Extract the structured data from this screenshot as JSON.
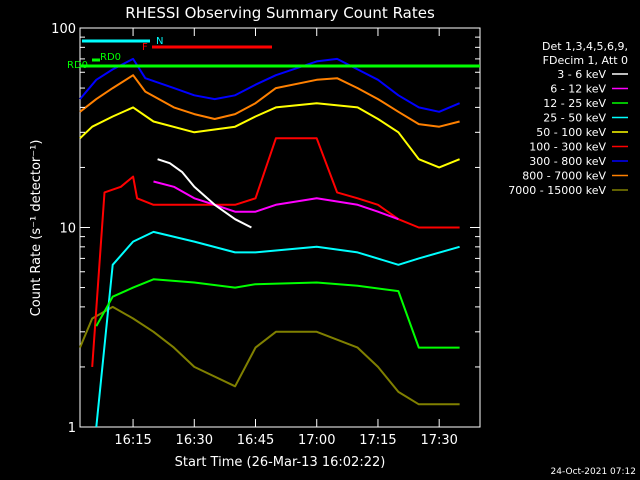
{
  "chart_data": {
    "type": "line",
    "title": "RHESSI Observing Summary Count Rates",
    "xlabel": "Start Time (26-Mar-13 16:02:22)",
    "ylabel": "Count Rate (s⁻¹ detector⁻¹)",
    "y_scale": "log",
    "ylim": [
      1,
      100
    ],
    "xlim": [
      "16:02",
      "17:40"
    ],
    "x_ticks": [
      "16:15",
      "16:30",
      "16:45",
      "17:00",
      "17:15",
      "17:30"
    ],
    "y_ticks": [
      "1",
      "10",
      "100"
    ],
    "legend_placement": "right",
    "legend_header": [
      "Det 1,3,4,5,6,9,",
      "FDecim 1, Att 0"
    ],
    "series": [
      {
        "name": "3 - 6 keV",
        "color": "#ffffff",
        "x": [
          "16:21",
          "16:24",
          "16:27",
          "16:30",
          "16:35",
          "16:40",
          "16:44"
        ],
        "y": [
          22,
          21,
          19,
          16,
          13,
          11,
          10
        ]
      },
      {
        "name": "6 - 12 keV",
        "color": "#ff00ff",
        "x": [
          "16:20",
          "16:25",
          "16:30",
          "16:35",
          "16:40",
          "16:45",
          "16:50",
          "17:00",
          "17:10",
          "17:15",
          "17:20"
        ],
        "y": [
          17,
          16,
          14,
          13,
          12,
          12,
          13,
          14,
          13,
          12,
          11
        ]
      },
      {
        "name": "12 - 25 keV",
        "color": "#00ff00",
        "x": [
          "16:06",
          "16:10",
          "16:15",
          "16:20",
          "16:30",
          "16:40",
          "16:45",
          "17:00",
          "17:10",
          "17:20",
          "17:25",
          "17:35"
        ],
        "y": [
          3.2,
          4.5,
          5.0,
          5.5,
          5.3,
          5.0,
          5.2,
          5.3,
          5.1,
          4.8,
          2.5,
          2.5
        ]
      },
      {
        "name": "25 - 50 keV",
        "color": "#00ffff",
        "x": [
          "16:06",
          "16:10",
          "16:15",
          "16:20",
          "16:30",
          "16:40",
          "16:45",
          "17:00",
          "17:10",
          "17:20",
          "17:25",
          "17:35"
        ],
        "y": [
          1.0,
          6.5,
          8.5,
          9.5,
          8.5,
          7.5,
          7.5,
          8.0,
          7.5,
          6.5,
          7.0,
          8.0
        ]
      },
      {
        "name": "50 - 100 keV",
        "color": "#ffff00",
        "x": [
          "16:02",
          "16:05",
          "16:10",
          "16:15",
          "16:20",
          "16:30",
          "16:40",
          "16:45",
          "16:50",
          "17:00",
          "17:10",
          "17:15",
          "17:20",
          "17:25",
          "17:30",
          "17:35"
        ],
        "y": [
          28,
          32,
          36,
          40,
          34,
          30,
          32,
          36,
          40,
          42,
          40,
          35,
          30,
          22,
          20,
          22
        ]
      },
      {
        "name": "100 - 300 keV",
        "color": "#ff0000",
        "x": [
          "16:05",
          "16:08",
          "16:12",
          "16:15",
          "16:16",
          "16:20",
          "16:30",
          "16:40",
          "16:45",
          "16:50",
          "17:00",
          "17:05",
          "17:10",
          "17:15",
          "17:20",
          "17:25",
          "17:35"
        ],
        "y": [
          2.0,
          15,
          16,
          18,
          14,
          13,
          13,
          13,
          14,
          28,
          28,
          15,
          14,
          13,
          11,
          10,
          10
        ]
      },
      {
        "name": "300 - 800 keV",
        "color": "#0000ff",
        "x": [
          "16:02",
          "16:06",
          "16:10",
          "16:15",
          "16:18",
          "16:25",
          "16:30",
          "16:35",
          "16:40",
          "16:45",
          "16:50",
          "17:00",
          "17:05",
          "17:10",
          "17:15",
          "17:20",
          "17:25",
          "17:30",
          "17:35"
        ],
        "y": [
          44,
          55,
          62,
          70,
          56,
          50,
          46,
          44,
          46,
          52,
          58,
          68,
          70,
          62,
          55,
          46,
          40,
          38,
          42
        ]
      },
      {
        "name": "800 - 7000 keV",
        "color": "#ff8000",
        "x": [
          "16:02",
          "16:06",
          "16:10",
          "16:15",
          "16:18",
          "16:25",
          "16:30",
          "16:35",
          "16:40",
          "16:45",
          "16:50",
          "17:00",
          "17:05",
          "17:10",
          "17:15",
          "17:20",
          "17:25",
          "17:30",
          "17:35"
        ],
        "y": [
          38,
          44,
          50,
          58,
          48,
          40,
          37,
          35,
          37,
          42,
          50,
          55,
          56,
          50,
          44,
          38,
          33,
          32,
          34
        ]
      },
      {
        "name": "7000 - 15000 keV",
        "color": "#808000",
        "x": [
          "16:02",
          "16:05",
          "16:10",
          "16:15",
          "16:20",
          "16:25",
          "16:30",
          "16:40",
          "16:45",
          "16:50",
          "17:00",
          "17:10",
          "17:15",
          "17:20",
          "17:25",
          "17:35"
        ],
        "y": [
          2.5,
          3.5,
          4.0,
          3.5,
          3.0,
          2.5,
          2.0,
          1.6,
          2.5,
          3.0,
          3.0,
          2.5,
          2.0,
          1.5,
          1.3,
          1.3
        ]
      }
    ],
    "annotations": [
      {
        "text": "RD0",
        "color": "#00ff00"
      },
      {
        "text": "RD0",
        "color": "#00ff00"
      },
      {
        "text": "N",
        "color": "#00ffff"
      },
      {
        "text": "F",
        "color": "#ff0000"
      }
    ],
    "footer": "24-Oct-2021 07:12"
  }
}
